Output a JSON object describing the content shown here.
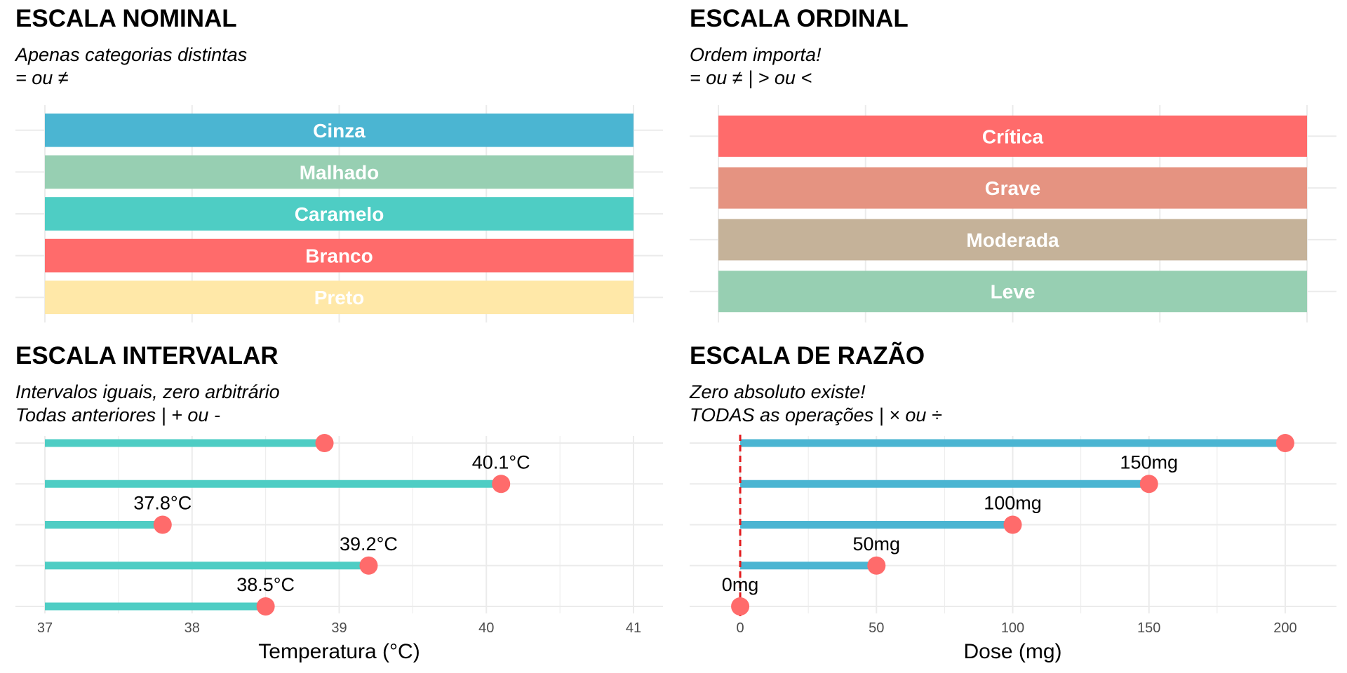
{
  "chart_data": [
    {
      "type": "bar",
      "title": "ESCALA NOMINAL",
      "subtitle_lines": [
        "Apenas categorias distintas",
        " = ou ≠"
      ],
      "categories": [
        "Cinza",
        "Malhado",
        "Caramelo",
        "Branco",
        "Preto"
      ],
      "values": [
        1,
        1,
        1,
        1,
        1
      ],
      "colors": [
        "#4BB5D2",
        "#97CFB2",
        "#4ECDC4",
        "#FF6B6B",
        "#FFE8A8"
      ],
      "xlim": [
        0,
        1
      ],
      "grid": true
    },
    {
      "type": "bar",
      "title": "ESCALA ORDINAL",
      "subtitle_lines": [
        "Ordem importa!",
        " = ou ≠ | > ou <"
      ],
      "categories": [
        "Crítica",
        "Grave",
        "Moderada",
        "Leve"
      ],
      "values": [
        1,
        1,
        1,
        1
      ],
      "colors": [
        "#FF6B6B",
        "#E59381",
        "#C5B299",
        "#97CFB2"
      ],
      "xlim": [
        0,
        1
      ],
      "grid": true
    },
    {
      "type": "lollipop",
      "title": "ESCALA INTERVALAR",
      "subtitle_lines": [
        "Intervalos iguais, zero arbitrário",
        " Todas anteriores | + ou -"
      ],
      "xlabel": "Temperatura (°C)",
      "xlim": [
        37,
        41
      ],
      "xticks": [
        "37",
        "38",
        "39",
        "40",
        "41"
      ],
      "xtick_values": [
        37,
        38,
        39,
        40,
        41
      ],
      "baseline": 37,
      "values": [
        38.9,
        40.1,
        37.8,
        39.2,
        38.5
      ],
      "labels": [
        "",
        "40.1°C",
        "37.8°C",
        "39.2°C",
        "38.5°C"
      ],
      "stem_color": "#4ECDC4",
      "point_color": "#FF6B6B",
      "grid": true
    },
    {
      "type": "lollipop",
      "title": "ESCALA DE RAZÃO",
      "subtitle_lines": [
        "Zero absoluto existe!",
        " TODAS as operações | × ou ÷"
      ],
      "xlabel": "Dose (mg)",
      "xlim": [
        -8,
        208
      ],
      "xticks": [
        "0",
        "50",
        "100",
        "150",
        "200"
      ],
      "xtick_values": [
        0,
        50,
        100,
        150,
        200
      ],
      "baseline": 0,
      "values": [
        200,
        150,
        100,
        50,
        0
      ],
      "labels": [
        "",
        "150mg",
        "100mg",
        "50mg",
        "0mg"
      ],
      "stem_color": "#4BB5D2",
      "point_color": "#FF6B6B",
      "reference_line": 0,
      "reference_color": "#E31A1C",
      "grid": true
    }
  ]
}
